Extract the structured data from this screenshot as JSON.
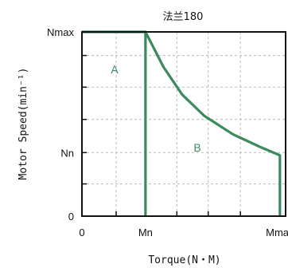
{
  "chart_data": {
    "type": "line",
    "title": "法兰180",
    "xlabel": "Torque(N・M)",
    "ylabel": "Motor Speed(min⁻¹)",
    "x_tick_labels": [
      "0",
      "Mn",
      "Mmax"
    ],
    "y_tick_labels": [
      "0",
      "Nn",
      "Nmax"
    ],
    "xlim": [
      0,
      1
    ],
    "ylim": [
      0,
      1
    ],
    "grid": true,
    "region_labels": [
      "A",
      "B"
    ],
    "series": [
      {
        "label": "A",
        "color": "#3a8a5e",
        "x": [
          0.0,
          0.312,
          0.312,
          0.312
        ],
        "y": [
          1.0,
          1.0,
          1.0,
          0.0
        ]
      },
      {
        "label": "B",
        "color": "#3a8a5e",
        "x": [
          0.312,
          0.4,
          0.492,
          0.6,
          0.74,
          0.876,
          0.972,
          0.972
        ],
        "y": [
          1.0,
          0.81,
          0.66,
          0.545,
          0.445,
          0.375,
          0.33,
          0.0
        ]
      }
    ]
  }
}
